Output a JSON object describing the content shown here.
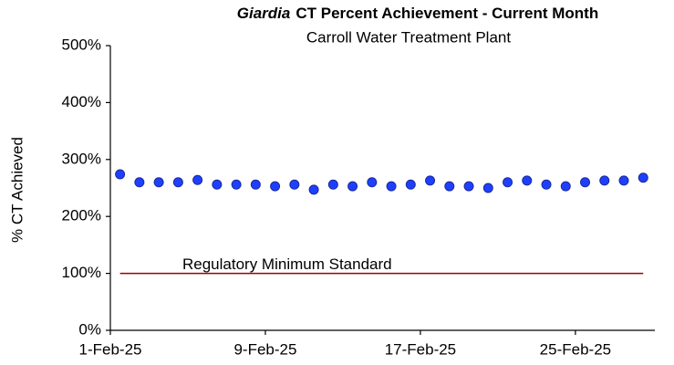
{
  "chart_data": {
    "type": "scatter",
    "title": {
      "italic": "Giardia",
      "rest": "CT Percent Achievement - Current Month"
    },
    "subtitle": "Carroll Water Treatment Plant",
    "y_label": "% CT Achieved",
    "reference_line": {
      "value": 100,
      "label": "Regulatory Minimum Standard",
      "color": "#a00000"
    },
    "x": [
      1.5,
      2.5,
      3.5,
      4.5,
      5.5,
      6.5,
      7.5,
      8.5,
      9.5,
      10.5,
      11.5,
      12.5,
      13.5,
      14.5,
      15.5,
      16.5,
      17.5,
      18.5,
      19.5,
      20.5,
      21.5,
      22.5,
      23.5,
      24.5,
      25.5,
      26.5,
      27.5,
      28.5
    ],
    "series": [
      {
        "color": "#1f3fff",
        "values": [
          274,
          260,
          260,
          260,
          264,
          256,
          256,
          256,
          253,
          256,
          247,
          256,
          253,
          260,
          253,
          256,
          263,
          253,
          253,
          250,
          260,
          263,
          256,
          253,
          260,
          263,
          263,
          268
        ]
      }
    ],
    "xlim": [
      1,
      29.1
    ],
    "xticks": [
      {
        "value": 1,
        "label": "1-Feb-25"
      },
      {
        "value": 9,
        "label": "9-Feb-25"
      },
      {
        "value": 17,
        "label": "17-Feb-25"
      },
      {
        "value": 25,
        "label": "25-Feb-25"
      }
    ],
    "ylim": [
      0,
      500
    ],
    "yticks": [
      {
        "value": 0,
        "label": "0%"
      },
      {
        "value": 100,
        "label": "100%"
      },
      {
        "value": 200,
        "label": "200%"
      },
      {
        "value": 300,
        "label": "300%"
      },
      {
        "value": 400,
        "label": "400%"
      },
      {
        "value": 500,
        "label": "500%"
      }
    ],
    "grid": false
  }
}
